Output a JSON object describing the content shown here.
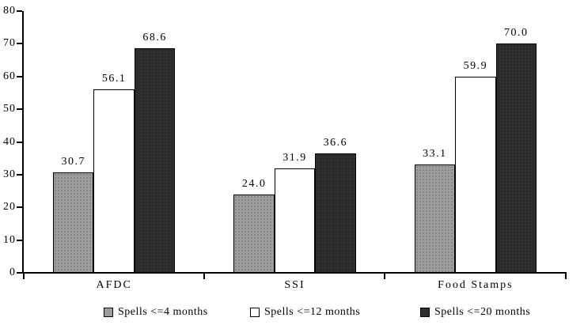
{
  "chart_data": {
    "type": "bar",
    "title": "",
    "xlabel": "",
    "ylabel": "",
    "categories": [
      "AFDC",
      "SSI",
      "Food Stamps"
    ],
    "series": [
      {
        "name": "Spells <=4 months",
        "color": "#9e9e9c",
        "values": [
          30.7,
          24.0,
          33.1
        ]
      },
      {
        "name": "Spells <=12 months",
        "color": "#ffffff",
        "values": [
          56.1,
          31.9,
          59.9
        ]
      },
      {
        "name": "Spells <=20 months",
        "color": "#2e2e2c",
        "values": [
          68.6,
          36.6,
          70.0
        ]
      }
    ],
    "value_labels": [
      [
        "30.7",
        "24.0",
        "33.1"
      ],
      [
        "56.1",
        "31.9",
        "59.9"
      ],
      [
        "68.6",
        "36.6",
        "70.0"
      ]
    ],
    "ylim": [
      0,
      80
    ],
    "yticks": [
      0,
      10,
      20,
      30,
      40,
      50,
      60,
      70,
      80
    ],
    "grid": false,
    "legend_position": "bottom",
    "bar_edge_color": "#000000",
    "axis_color": "#000000",
    "background_color": "#ffffff"
  }
}
